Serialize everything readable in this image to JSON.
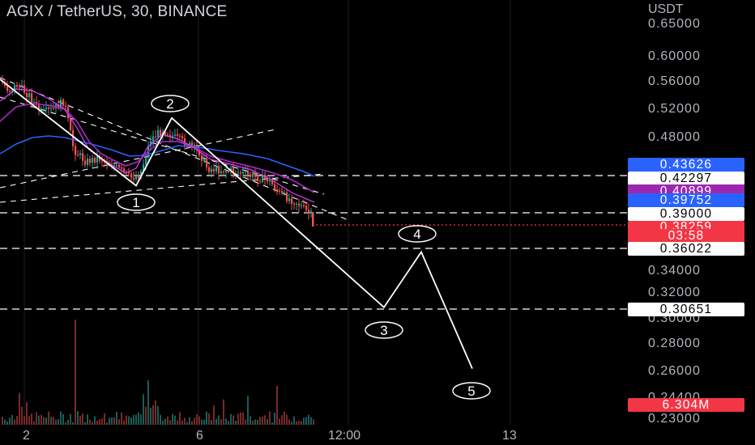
{
  "header": {
    "symbol_title": "AGIX / TetherUS, 30, BINANCE",
    "currency": "USDT"
  },
  "colors": {
    "background": "#000000",
    "up_candle": "#26a69a",
    "down_candle": "#ef5350",
    "ma_blue": "#2962ff",
    "ma_purple": "#9c27b0",
    "ma_magenta": "#e040fb",
    "drawing": "#ffffff",
    "current_price": "#f23645"
  },
  "chart_data": {
    "type": "line",
    "title": "AGIX / TetherUS, 30, BINANCE",
    "y_axis_unit": "USDT",
    "ylim": [
      0.23,
      0.65
    ],
    "y_ticks": [
      "0.65000",
      "0.60000",
      "0.56000",
      "0.52000",
      "0.48000",
      "0.34000",
      "0.32000",
      "0.30000",
      "0.28000",
      "0.26000",
      "0.24400",
      "0.23000"
    ],
    "x_ticks": [
      "2",
      "6",
      "12:00",
      "13"
    ],
    "price_tags": [
      {
        "text": "0.43626",
        "bg": "#2962ff",
        "fg": "#ffffff"
      },
      {
        "text": "0.42297",
        "bg": "#ffffff",
        "fg": "#000000"
      },
      {
        "text": "0.40899",
        "bg": "#9c27b0",
        "fg": "#ffffff"
      },
      {
        "text": "0.39752",
        "bg": "#2962ff",
        "fg": "#ffffff"
      },
      {
        "text": "0.39000",
        "bg": "#ffffff",
        "fg": "#000000"
      },
      {
        "text": "0.38259",
        "bg": "#f23645",
        "fg": "#ffffff"
      },
      {
        "text": "03:58",
        "bg": "#f23645",
        "fg": "#ffffff"
      },
      {
        "text": "0.36022",
        "bg": "#ffffff",
        "fg": "#000000"
      },
      {
        "text": "0.30651",
        "bg": "#ffffff",
        "fg": "#000000"
      },
      {
        "text": "6.304M",
        "bg": "#f23645",
        "fg": "#ffffff"
      }
    ],
    "horizontal_levels": [
      0.42297,
      0.39,
      0.36022,
      0.30651
    ],
    "current_price": 0.38259,
    "wave_labels": [
      "1",
      "2",
      "3",
      "4",
      "5"
    ],
    "wave_path_prices": [
      0.565,
      0.414,
      0.508,
      0.308,
      0.357,
      0.262
    ],
    "ma_series": [
      {
        "color": "#2962ff",
        "last": 0.43626
      },
      {
        "color": "#9c27b0",
        "last": 0.40899
      },
      {
        "color": "#e040fb",
        "last": 0.39752
      }
    ]
  }
}
